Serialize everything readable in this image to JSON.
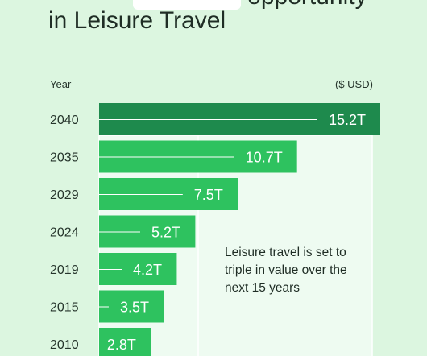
{
  "headline": {
    "line1_visible": "opportunity",
    "line2": "in Leisure Travel"
  },
  "column_headers": {
    "year": "Year",
    "unit": "($ USD)"
  },
  "note": "Leisure travel is set to triple in value over the next 15 years",
  "colors": {
    "background": "#dcf6e0",
    "bar": "#2ec25f",
    "bar_highlight": "#1e8a4d",
    "panel": "#eefbf1"
  },
  "chart_data": {
    "type": "bar",
    "orientation": "horizontal",
    "title": "in Leisure Travel",
    "categories": [
      "2040",
      "2035",
      "2029",
      "2024",
      "2019",
      "2015",
      "2010"
    ],
    "values": [
      15.2,
      10.7,
      7.5,
      5.2,
      4.2,
      3.5,
      2.8
    ],
    "value_labels": [
      "15.2T",
      "10.7T",
      "7.5T",
      "5.2T",
      "4.2T",
      "3.5T",
      "2.8T"
    ],
    "xlabel": "($ USD)",
    "ylabel": "Year",
    "xlim": [
      0,
      15.2
    ],
    "highlight_category": "2040",
    "grid": false
  }
}
